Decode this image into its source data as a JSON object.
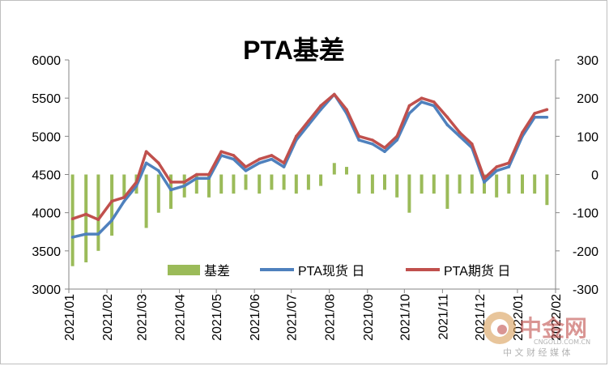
{
  "chart_data": {
    "type": "line",
    "title": "PTA基差",
    "xlabel": "",
    "ylabel": "",
    "ylim": [
      3000,
      6000
    ],
    "y2lim": [
      -300,
      300
    ],
    "yticks": [
      "6000",
      "5500",
      "5000",
      "4500",
      "4000",
      "3500",
      "3000"
    ],
    "y2ticks": [
      "300",
      "200",
      "100",
      "0",
      "-100",
      "-200",
      "-300"
    ],
    "xticks": [
      "2021/01",
      "2021/02",
      "2021/03",
      "2021/04",
      "2021/05",
      "2021/06",
      "2021/07",
      "2021/08",
      "2021/09",
      "2021/10",
      "2021/11",
      "2021/12",
      "2022/01",
      "2022/02"
    ],
    "grid": false,
    "legend_position": "bottom-inside",
    "legend": {
      "basis": "基差",
      "spot": "PTA现货 日",
      "futures": "PTA期货 日"
    },
    "colors": {
      "basis": "#9bbb59",
      "spot": "#4f81bd",
      "futures": "#c0504d"
    },
    "series": [
      {
        "name": "PTA现货 日",
        "axis": "left",
        "x": [
          "2021/01/04",
          "2021/01/15",
          "2021/01/25",
          "2021/02/05",
          "2021/02/15",
          "2021/02/25",
          "2021/03/05",
          "2021/03/15",
          "2021/03/25",
          "2021/04/05",
          "2021/04/15",
          "2021/04/25",
          "2021/05/05",
          "2021/05/15",
          "2021/05/25",
          "2021/06/05",
          "2021/06/15",
          "2021/06/25",
          "2021/07/05",
          "2021/07/15",
          "2021/07/25",
          "2021/08/05",
          "2021/08/15",
          "2021/08/25",
          "2021/09/05",
          "2021/09/15",
          "2021/09/25",
          "2021/10/05",
          "2021/10/15",
          "2021/10/25",
          "2021/11/05",
          "2021/11/15",
          "2021/11/25",
          "2021/12/05",
          "2021/12/15",
          "2021/12/25",
          "2022/01/05",
          "2022/01/15",
          "2022/01/25"
        ],
        "values": [
          3680,
          3720,
          3720,
          3900,
          4150,
          4350,
          4650,
          4550,
          4300,
          4350,
          4450,
          4450,
          4750,
          4700,
          4550,
          4650,
          4700,
          4600,
          4950,
          5150,
          5350,
          5550,
          5300,
          4950,
          4900,
          4800,
          4950,
          5300,
          5450,
          5400,
          5150,
          5000,
          4850,
          4400,
          4550,
          4600,
          5000,
          5250,
          5250
        ]
      },
      {
        "name": "PTA期货 日",
        "axis": "left",
        "x": [
          "2021/01/04",
          "2021/01/15",
          "2021/01/25",
          "2021/02/05",
          "2021/02/15",
          "2021/02/25",
          "2021/03/05",
          "2021/03/15",
          "2021/03/25",
          "2021/04/05",
          "2021/04/15",
          "2021/04/25",
          "2021/05/05",
          "2021/05/15",
          "2021/05/25",
          "2021/06/05",
          "2021/06/15",
          "2021/06/25",
          "2021/07/05",
          "2021/07/15",
          "2021/07/25",
          "2021/08/05",
          "2021/08/15",
          "2021/08/25",
          "2021/09/05",
          "2021/09/15",
          "2021/09/25",
          "2021/10/05",
          "2021/10/15",
          "2021/10/25",
          "2021/11/05",
          "2021/11/15",
          "2021/11/25",
          "2021/12/05",
          "2021/12/15",
          "2021/12/25",
          "2022/01/05",
          "2022/01/15",
          "2022/01/25"
        ],
        "values": [
          3920,
          3980,
          3910,
          4150,
          4200,
          4400,
          4800,
          4650,
          4400,
          4400,
          4500,
          4500,
          4800,
          4750,
          4600,
          4700,
          4750,
          4650,
          5000,
          5200,
          5400,
          5550,
          5350,
          5000,
          4950,
          4850,
          5000,
          5400,
          5500,
          5450,
          5250,
          5050,
          4900,
          4450,
          4600,
          4650,
          5050,
          5300,
          5350
        ]
      },
      {
        "name": "基差",
        "axis": "right",
        "x": [
          "2021/01/04",
          "2021/01/15",
          "2021/01/25",
          "2021/02/05",
          "2021/02/15",
          "2021/02/25",
          "2021/03/05",
          "2021/03/15",
          "2021/03/25",
          "2021/04/05",
          "2021/04/15",
          "2021/04/25",
          "2021/05/05",
          "2021/05/15",
          "2021/05/25",
          "2021/06/05",
          "2021/06/15",
          "2021/06/25",
          "2021/07/05",
          "2021/07/15",
          "2021/07/25",
          "2021/08/05",
          "2021/08/15",
          "2021/08/25",
          "2021/09/05",
          "2021/09/15",
          "2021/09/25",
          "2021/10/05",
          "2021/10/15",
          "2021/10/25",
          "2021/11/05",
          "2021/11/15",
          "2021/11/25",
          "2021/12/05",
          "2021/12/15",
          "2021/12/25",
          "2022/01/05",
          "2022/01/15",
          "2022/01/25"
        ],
        "values": [
          -240,
          -230,
          -200,
          -160,
          -60,
          -50,
          -140,
          -100,
          -90,
          -60,
          -50,
          -60,
          -50,
          -50,
          -40,
          -50,
          -40,
          -40,
          -50,
          -40,
          -30,
          30,
          20,
          -50,
          -50,
          -40,
          -60,
          -100,
          -50,
          -50,
          -90,
          -50,
          -50,
          -50,
          -60,
          -50,
          -50,
          -50,
          -80
        ]
      }
    ]
  },
  "watermark": {
    "brand": "中金网",
    "url": "CNGOLD.COM.CN",
    "slogan": "中 文 财 经 媒 体"
  }
}
